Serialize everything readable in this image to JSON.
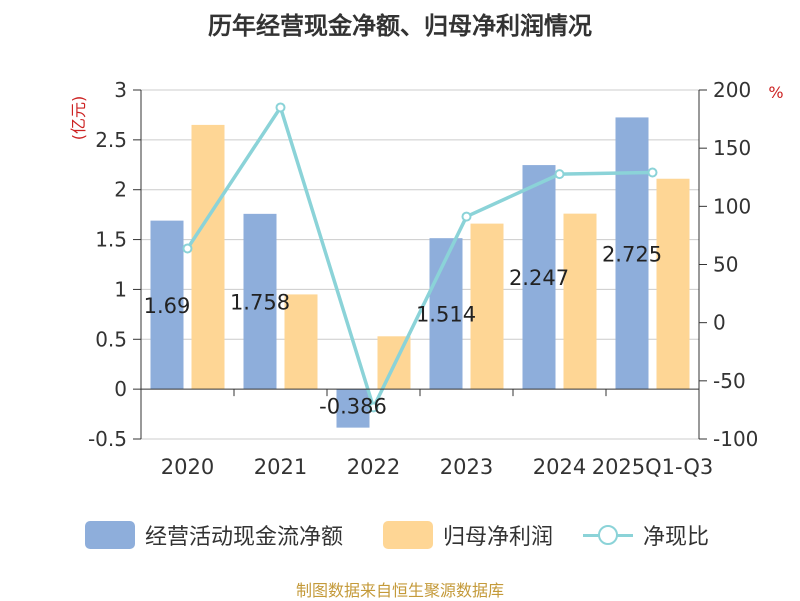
{
  "chart_data": {
    "type": "bar",
    "title": "历年经营现金净额、归母净利润情况",
    "categories": [
      "2020",
      "2021",
      "2022",
      "2023",
      "2024",
      "2025Q1-Q3"
    ],
    "series": [
      {
        "name": "经营活动现金流净额",
        "type": "bar",
        "axis": "left",
        "color": "#8eaedb",
        "values": [
          1.69,
          1.758,
          -0.386,
          1.514,
          2.247,
          2.725
        ],
        "labels": [
          "1.69",
          "1.758",
          "-0.386",
          "1.514",
          "2.247",
          "2.725"
        ]
      },
      {
        "name": "归母净利润",
        "type": "bar",
        "axis": "left",
        "color": "#fed695",
        "values": [
          2.65,
          0.95,
          0.53,
          1.66,
          1.76,
          2.11
        ]
      },
      {
        "name": "净现比",
        "type": "line",
        "axis": "right",
        "color": "#8bd3d8",
        "values": [
          63.8,
          185,
          -72.8,
          91.2,
          127.7,
          129.1
        ]
      }
    ],
    "y_left": {
      "label": "(亿元)",
      "min": -0.5,
      "max": 3,
      "ticks": [
        "-0.5",
        "0",
        "0.5",
        "1",
        "1.5",
        "2",
        "2.5",
        "3"
      ]
    },
    "y_right": {
      "label": "%",
      "min": -100,
      "max": 200,
      "ticks": [
        "-100",
        "-50",
        "0",
        "50",
        "100",
        "150",
        "200"
      ]
    },
    "grid": true,
    "legend": "bottom"
  },
  "footer": "制图数据来自恒生聚源数据库"
}
